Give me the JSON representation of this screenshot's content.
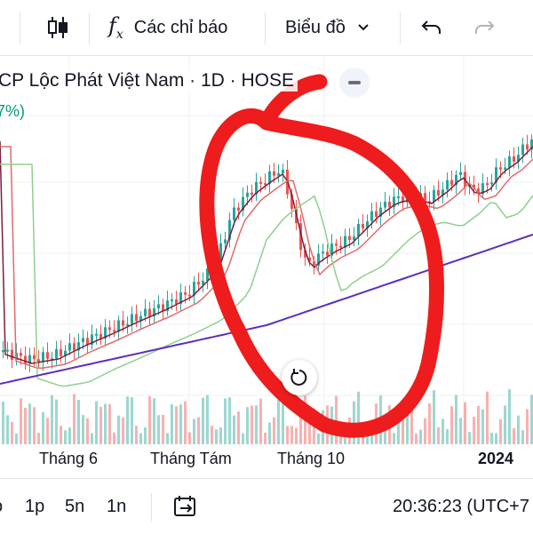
{
  "toolbar": {
    "indicators_label": "Các chỉ báo",
    "chart_type_label": "Biểu đồ"
  },
  "symbol": {
    "title": "CP Lộc Phát Việt Nam · 1D · HOSE",
    "change_pct": "7%)"
  },
  "x_axis": {
    "labels": [
      "Tháng 6",
      "Tháng Tám",
      "Tháng 10",
      "2024"
    ]
  },
  "bottombar": {
    "range_1": "o",
    "range_2": "1p",
    "range_3": "5n",
    "range_4": "1n",
    "time": "20:36:23 (UTC+7"
  },
  "colors": {
    "up": "#26a69a",
    "down": "#ef5350",
    "ma_fast": "#7b1f3c",
    "ma_mid": "#e06b6b",
    "ma_slow": "#8fcf8f",
    "ma_long": "#5b2fbf",
    "annotation": "#ee1c1c"
  }
}
